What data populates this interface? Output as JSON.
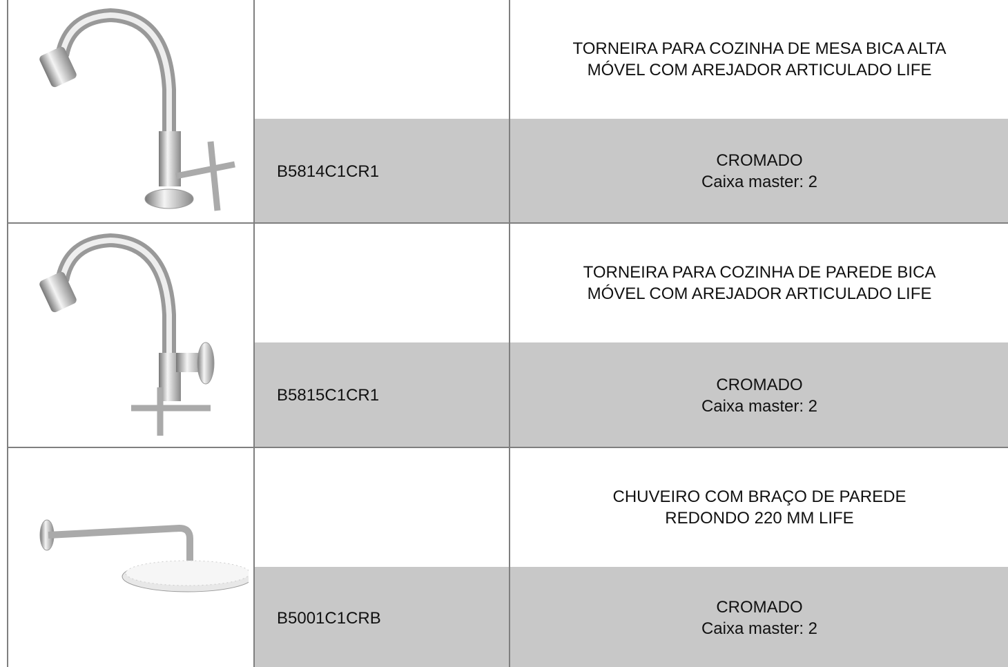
{
  "table": {
    "rows": [
      {
        "description": [
          "TORNEIRA PARA COZINHA DE MESA BICA ALTA",
          "MÓVEL COM AREJADOR ARTICULADO LIFE"
        ],
        "code": "B5814C1CR1",
        "finish": "CROMADO",
        "box": "Caixa master: 2"
      },
      {
        "description": [
          "TORNEIRA PARA COZINHA DE PAREDE BICA",
          "MÓVEL COM AREJADOR ARTICULADO LIFE"
        ],
        "code": "B5815C1CR1",
        "finish": "CROMADO",
        "box": "Caixa master: 2"
      },
      {
        "description": [
          "CHUVEIRO COM BRAÇO DE PAREDE",
          "REDONDO 220 MM LIFE"
        ],
        "code": "B5001C1CRB",
        "finish": "CROMADO",
        "box": "Caixa master: 2"
      }
    ]
  }
}
